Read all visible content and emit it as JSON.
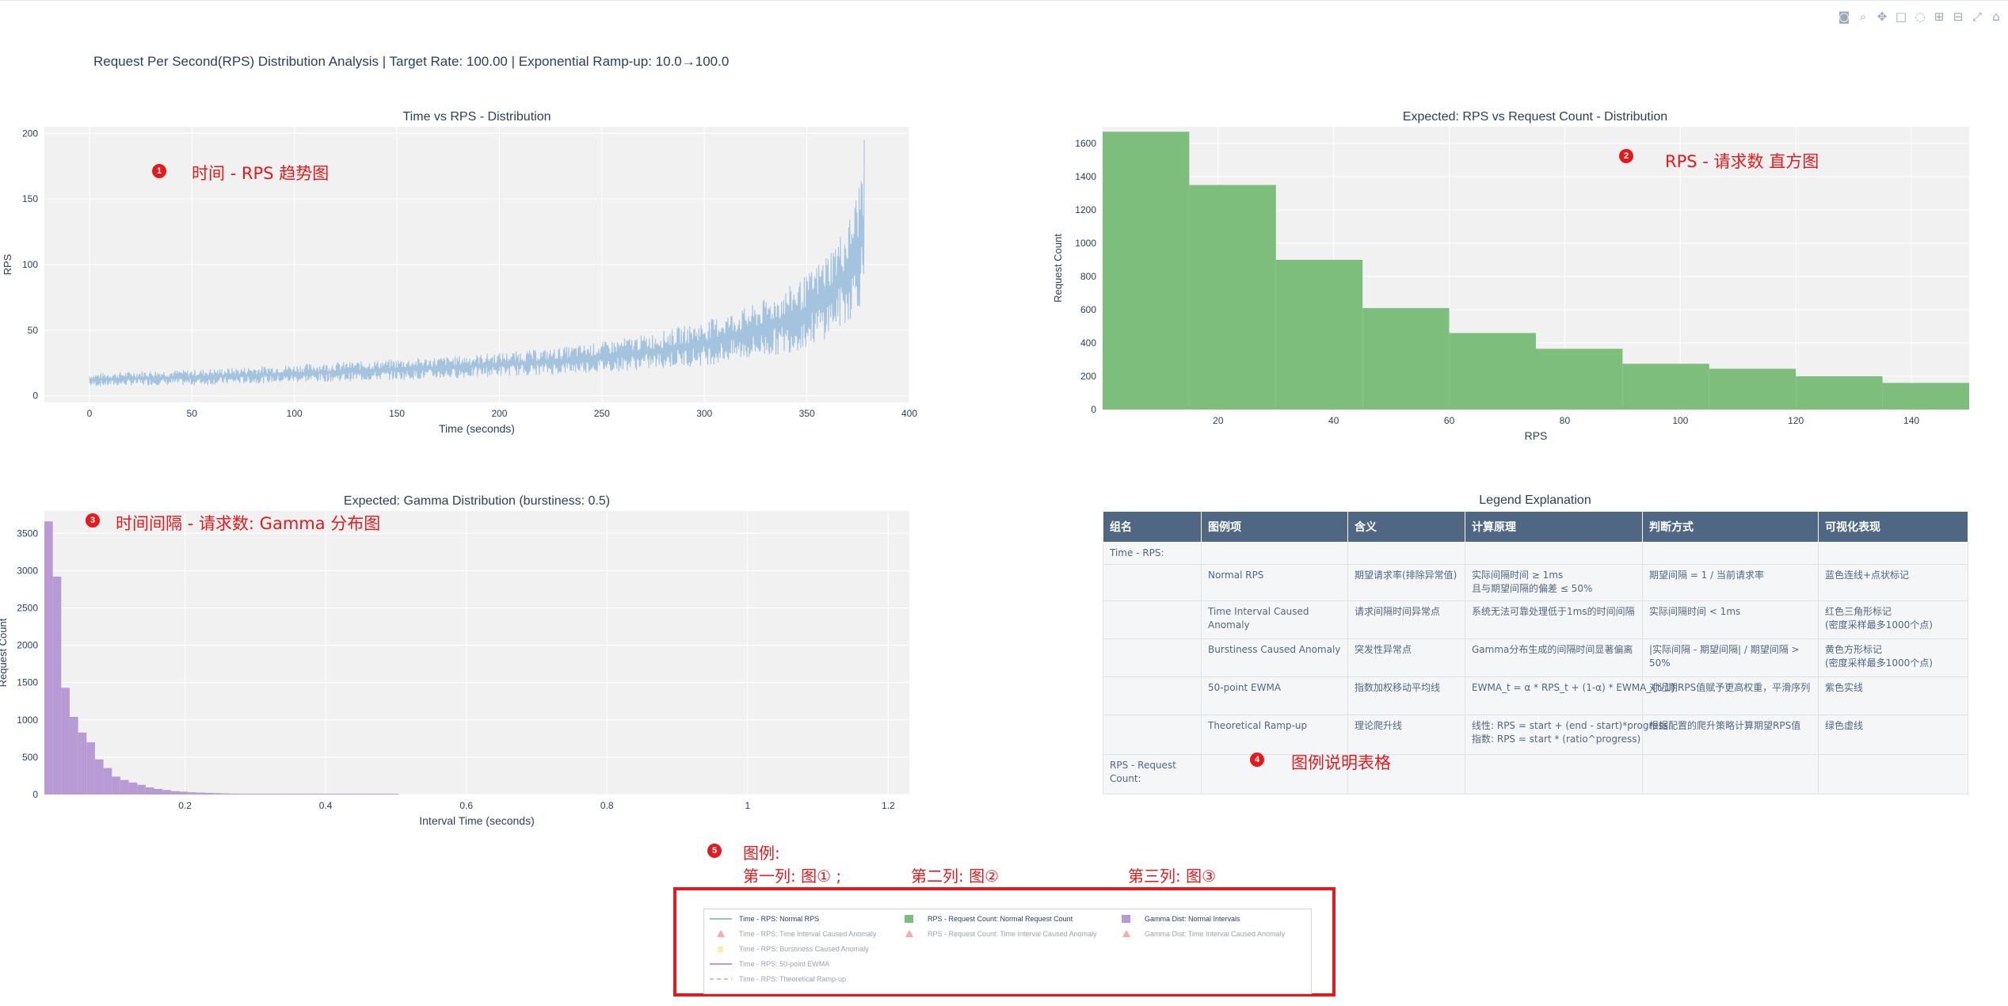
{
  "main_title": "Request Per Second(RPS) Distribution Analysis | Target Rate: 100.00 | Exponential Ramp-up: 10.0→100.0",
  "modebar_icons": [
    "camera-icon",
    "zoom-icon",
    "pan-icon",
    "box-select-icon",
    "lasso-icon",
    "zoom-in-icon",
    "zoom-out-icon",
    "autoscale-icon",
    "home-icon"
  ],
  "colors": {
    "rps_line": "#9ec0dc",
    "histogram_green": "#7ebe7c",
    "gamma_purple": "#b89bd4",
    "plot_bg": "#f1f1f1",
    "annotation_red": "#e41a1c",
    "table_header": "#506784"
  },
  "annotations": {
    "a1": {
      "num": "1",
      "text": "时间 - RPS 趋势图"
    },
    "a2": {
      "num": "2",
      "text": "RPS - 请求数 直方图"
    },
    "a3": {
      "num": "3",
      "text": "时间间隔 - 请求数: Gamma 分布图"
    },
    "a4": {
      "num": "4",
      "text": "图例说明表格"
    },
    "a5": {
      "num": "5",
      "line1": "图例:",
      "col1": "第一列: 图① ;",
      "col2": "第二列: 图②",
      "col3": "第三列: 图③"
    }
  },
  "chart_data": [
    {
      "type": "line",
      "title": "Time vs RPS - Distribution",
      "xlabel": "Time (seconds)",
      "ylabel": "RPS",
      "xlim": [
        -22,
        400
      ],
      "ylim": [
        -5,
        205
      ],
      "x_ticks": [
        0,
        50,
        100,
        150,
        200,
        250,
        300,
        350,
        400
      ],
      "y_ticks": [
        0,
        50,
        100,
        150,
        200
      ],
      "series": [
        {
          "name": "Time - RPS: Normal RPS",
          "x": [
            0,
            25,
            50,
            75,
            100,
            125,
            150,
            175,
            200,
            225,
            250,
            275,
            300,
            325,
            340,
            350,
            360,
            370,
            375,
            378
          ],
          "y_low": [
            7,
            8,
            8,
            9,
            10,
            11,
            12,
            13,
            15,
            16,
            18,
            20,
            23,
            28,
            32,
            36,
            44,
            55,
            65,
            72
          ],
          "y_high": [
            17,
            19,
            20,
            22,
            24,
            26,
            28,
            30,
            33,
            36,
            41,
            48,
            57,
            70,
            82,
            92,
            110,
            132,
            160,
            195
          ]
        }
      ]
    },
    {
      "type": "bar",
      "title": "Expected: RPS vs Request Count - Distribution",
      "xlabel": "RPS",
      "ylabel": "Request Count",
      "xlim": [
        0,
        150
      ],
      "ylim": [
        0,
        1700
      ],
      "x_ticks": [
        20,
        40,
        60,
        80,
        100,
        120,
        140
      ],
      "y_ticks": [
        0,
        200,
        400,
        600,
        800,
        1000,
        1200,
        1400,
        1600
      ],
      "bin_edges": [
        0,
        15,
        30,
        45,
        60,
        75,
        90,
        105,
        120,
        135,
        150
      ],
      "values": [
        1670,
        1350,
        900,
        610,
        460,
        365,
        275,
        245,
        200,
        160
      ],
      "series_name": "RPS - Request Count: Normal Request Count"
    },
    {
      "type": "bar",
      "title": "Expected: Gamma Distribution (burstiness: 0.5)",
      "xlabel": "Interval Time (seconds)",
      "ylabel": "Request Count",
      "xlim": [
        0,
        1.23
      ],
      "ylim": [
        0,
        3800
      ],
      "x_ticks": [
        0.2,
        0.4,
        0.6,
        0.8,
        1,
        1.2
      ],
      "y_ticks": [
        0,
        500,
        1000,
        1500,
        2000,
        2500,
        3000,
        3500
      ],
      "bin_width": 0.012,
      "values": [
        3660,
        2920,
        1430,
        1040,
        830,
        700,
        470,
        355,
        240,
        195,
        160,
        130,
        95,
        75,
        60,
        45,
        38,
        30,
        26,
        22,
        18,
        15,
        12,
        10,
        8,
        7,
        6,
        5,
        4,
        4,
        3,
        3,
        2,
        2,
        2,
        2,
        1,
        1,
        1,
        1,
        1,
        1,
        0,
        0,
        0,
        0,
        0,
        0,
        0,
        0,
        0,
        0,
        0,
        0,
        0,
        0,
        0,
        0,
        0,
        0,
        0,
        0,
        0,
        0,
        0,
        0,
        0,
        0,
        0,
        0,
        0,
        0,
        0,
        0,
        0,
        0,
        0,
        0,
        0,
        0,
        0,
        0,
        0,
        0,
        0,
        0,
        0,
        0,
        0,
        0,
        0,
        0,
        0,
        0,
        0,
        0,
        0,
        0,
        0,
        0,
        0,
        0
      ],
      "series_name": "Gamma Dist: Normal Intervals"
    }
  ],
  "table": {
    "title": "Legend Explanation",
    "headers": [
      "组名",
      "图例项",
      "含义",
      "计算原理",
      "判断方式",
      "可视化表现"
    ],
    "rows": [
      [
        "Time - RPS:",
        "",
        "",
        "",
        "",
        ""
      ],
      [
        "",
        "Normal RPS",
        "期望请求率(排除异常值)",
        "实际间隔时间 ≥ 1ms\n且与期望间隔的偏差 ≤ 50%",
        "期望间隔 = 1 / 当前请求率",
        "蓝色连线+点状标记"
      ],
      [
        "",
        "Time Interval Caused Anomaly",
        "请求间隔时间异常点",
        "系统无法可靠处理低于1ms的时间间隔",
        "实际间隔时间 < 1ms",
        "红色三角形标记\n(密度采样最多1000个点)"
      ],
      [
        "",
        "Burstiness Caused Anomaly",
        "突发性异常点",
        "Gamma分布生成的间隔时间显著偏离",
        "|实际间隔 - 期望间隔| / 期望间隔 > 50%",
        "黄色方形标记\n(密度采样最多1000个点)"
      ],
      [
        "",
        "50-point EWMA",
        "指数加权移动平均线",
        "EWMA_t = α * RPS_t + (1-α) * EWMA_{t-1}",
        "对近期RPS值赋予更高权重，平滑序列",
        "紫色实线"
      ],
      [
        "",
        "Theoretical Ramp-up",
        "理论爬升线",
        "线性: RPS = start + (end - start)*progress\n指数: RPS = start * (ratio^progress)",
        "根据配置的爬升策略计算期望RPS值",
        "绿色虚线"
      ],
      [
        "RPS - Request Count:",
        "",
        "",
        "",
        "",
        ""
      ]
    ]
  },
  "legend": {
    "col1": [
      {
        "label": "Time - RPS: Normal RPS",
        "sym": "line",
        "color": "#9ec0dc",
        "dim": false
      },
      {
        "label": "Time - RPS: Time Interval Caused Anomaly",
        "sym": "triangle",
        "color": "#ff6b6b",
        "dim": true
      },
      {
        "label": "Time - RPS: Burstiness Caused Anomaly",
        "sym": "square",
        "color": "#ffe066",
        "dim": true
      },
      {
        "label": "Time - RPS: 50-point EWMA",
        "sym": "line",
        "color": "#c04a8c",
        "dim": true
      },
      {
        "label": "Time - RPS: Theoretical Ramp-up",
        "sym": "dash",
        "color": "#7ebe7c",
        "dim": true
      }
    ],
    "col2": [
      {
        "label": "RPS - Request Count: Normal Request Count",
        "sym": "box",
        "color": "#7ebe7c",
        "dim": false
      },
      {
        "label": "RPS - Request Count: Time Interval Caused Anomaly",
        "sym": "triangle",
        "color": "#ff6b6b",
        "dim": true
      }
    ],
    "col3": [
      {
        "label": "Gamma Dist: Normal Intervals",
        "sym": "box",
        "color": "#b89bd4",
        "dim": false
      },
      {
        "label": "Gamma Dist: Time Interval Caused Anomaly",
        "sym": "triangle",
        "color": "#ff6b6b",
        "dim": true
      }
    ]
  }
}
